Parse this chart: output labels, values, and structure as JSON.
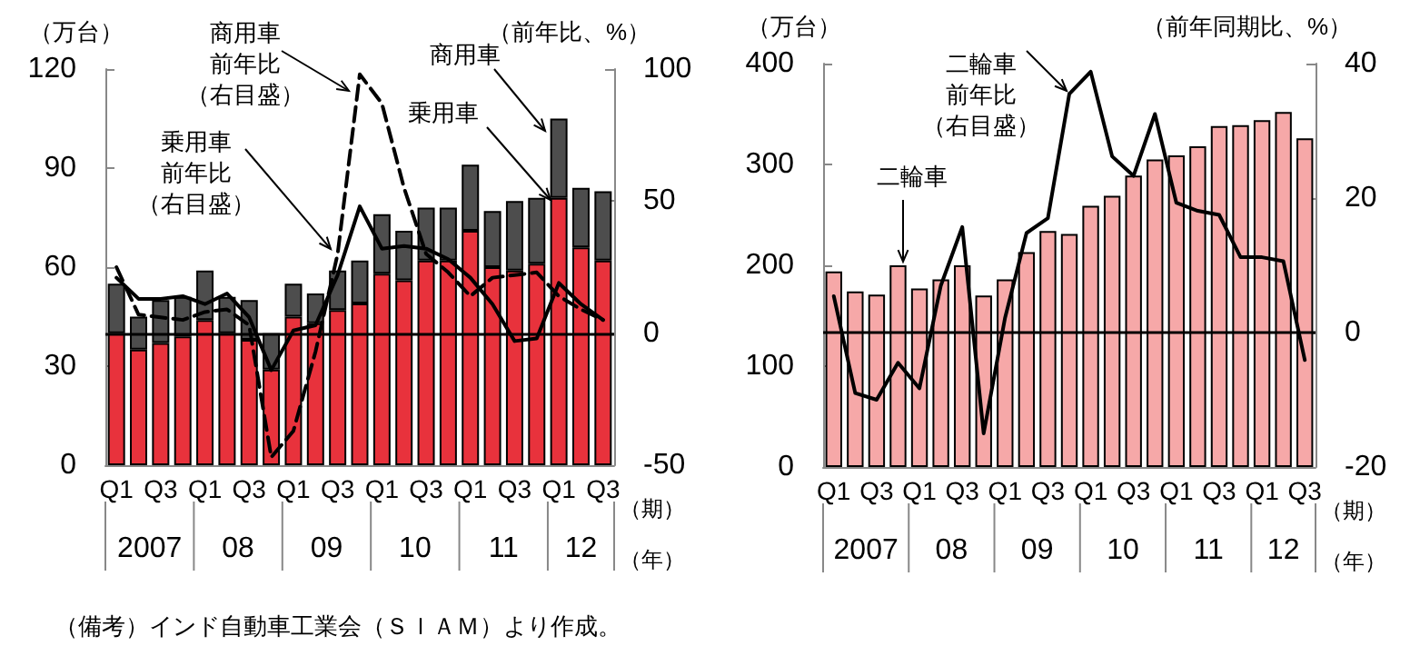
{
  "chart_data": [
    {
      "type": "bar",
      "stacked": true,
      "categories": [
        "Q1",
        null,
        "Q3",
        null,
        "Q1",
        null,
        "Q3",
        null,
        "Q1",
        null,
        "Q3",
        null,
        "Q1",
        null,
        "Q3",
        null,
        "Q1",
        null,
        "Q3",
        null,
        "Q1",
        null,
        "Q3"
      ],
      "ylabel": "（万台）",
      "y2label": "（前年比、%）",
      "xlabel": "（期）（年）",
      "legend": "top right",
      "ylim": [
        0,
        120
      ],
      "yticks": [
        0,
        30,
        60,
        90,
        120
      ],
      "y2lim": [
        -50,
        100
      ],
      "y2ticks": [
        -50,
        0,
        50,
        100
      ],
      "grid": false,
      "marker": "none",
      "ref_lines": [
        {
          "axis": "y2",
          "value": 0,
          "color": "#000000"
        }
      ],
      "annotations": [
        "2007",
        "08",
        "09",
        "10",
        "11",
        "12",
        "（備考）インド自動車工業会（ＳＩＡＭ）より作成。"
      ],
      "series": [
        {
          "name": "乗用車",
          "type": "bar",
          "color": "#e8323c",
          "values": [
            40,
            35,
            37,
            39,
            44,
            40,
            38,
            29,
            45,
            43,
            47,
            49,
            58,
            56,
            62,
            62,
            71,
            60,
            59,
            61,
            81,
            66,
            62
          ]
        },
        {
          "name": "商用車",
          "type": "bar",
          "color": "#4d4d4d",
          "values": [
            15,
            10,
            13,
            12,
            15,
            11,
            12,
            11,
            10,
            9,
            12,
            13,
            18,
            15,
            16,
            16,
            20,
            17,
            21,
            20,
            24,
            18,
            21
          ]
        },
        {
          "name": "乗用車前年比（右目盛）",
          "type": "line",
          "axis": "y2",
          "color": "#000000",
          "line_style": "solid",
          "values": [
            21,
            13,
            13,
            14,
            11,
            15,
            6,
            -14,
            1,
            3,
            22,
            48,
            32,
            33,
            32,
            28,
            21,
            11,
            -3,
            -2,
            19,
            11,
            5
          ]
        },
        {
          "name": "商用車前年比（右目盛）",
          "type": "line",
          "axis": "y2",
          "color": "#000000",
          "line_style": "dashed",
          "values": [
            25,
            7,
            6,
            5,
            8,
            9,
            3,
            -47,
            -37,
            -7,
            30,
            98,
            87,
            55,
            30,
            23,
            14,
            21,
            22,
            23,
            14,
            9,
            5
          ]
        }
      ]
    },
    {
      "type": "bar",
      "categories": [
        "Q1",
        null,
        "Q3",
        null,
        "Q1",
        null,
        "Q3",
        null,
        "Q1",
        null,
        "Q3",
        null,
        "Q1",
        null,
        "Q3",
        null,
        "Q1",
        null,
        "Q3",
        null,
        "Q1",
        null,
        "Q3"
      ],
      "ylabel": "（万台）",
      "y2label": "（前年同期比、%）",
      "xlabel": "（期）（年）",
      "legend": "top left",
      "ylim": [
        0,
        400
      ],
      "yticks": [
        0,
        100,
        200,
        300,
        400
      ],
      "y2lim": [
        -20,
        40
      ],
      "y2ticks": [
        -20,
        0,
        20,
        40
      ],
      "grid": false,
      "marker": "none",
      "ref_lines": [
        {
          "axis": "y2",
          "value": 0,
          "color": "#000000"
        }
      ],
      "annotations": [
        "2007",
        "08",
        "09",
        "10",
        "11",
        "12"
      ],
      "series": [
        {
          "name": "二輪車",
          "type": "bar",
          "color": "#f6a8a8",
          "values": [
            194,
            174,
            171,
            200,
            177,
            186,
            200,
            170,
            186,
            213,
            234,
            231,
            259,
            269,
            289,
            305,
            309,
            318,
            338,
            339,
            344,
            352,
            326
          ]
        },
        {
          "name": "二輪車前年比（右目盛）",
          "type": "line",
          "axis": "y2",
          "color": "#000000",
          "line_style": "solid",
          "values": [
            5.4,
            -9,
            -10,
            -4.5,
            -8.3,
            7,
            15.7,
            -15,
            2.2,
            14.8,
            17,
            35.5,
            38.8,
            26.2,
            23.3,
            32.5,
            19.3,
            18.1,
            17.5,
            11.2,
            11.2,
            10.6,
            -4.1
          ]
        }
      ]
    }
  ]
}
